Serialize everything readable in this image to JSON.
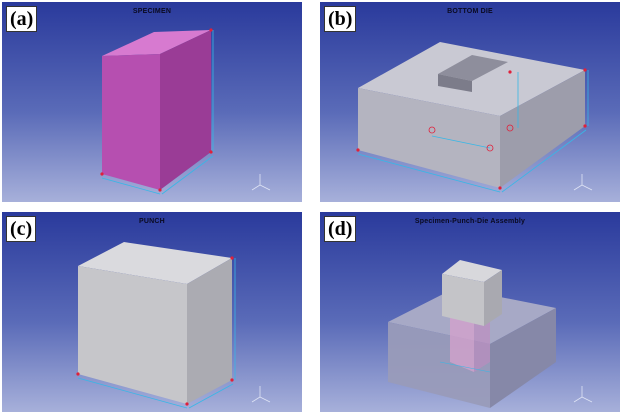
{
  "panels": [
    {
      "label": "(a)",
      "title": "SPECIMEN"
    },
    {
      "label": "(b)",
      "title": "BOTTOM DIE"
    },
    {
      "label": "(c)",
      "title": "PUNCH"
    },
    {
      "label": "(d)",
      "title": "Specimen-Punch-Die Assembly"
    }
  ],
  "colors": {
    "specimen": "#b64fb0",
    "die": "#b8b8c4",
    "punch": "#c8c8cc",
    "dimension": "#38b7e6",
    "marker": "#e0203a"
  },
  "icons": [
    "axis-triad-icon"
  ]
}
